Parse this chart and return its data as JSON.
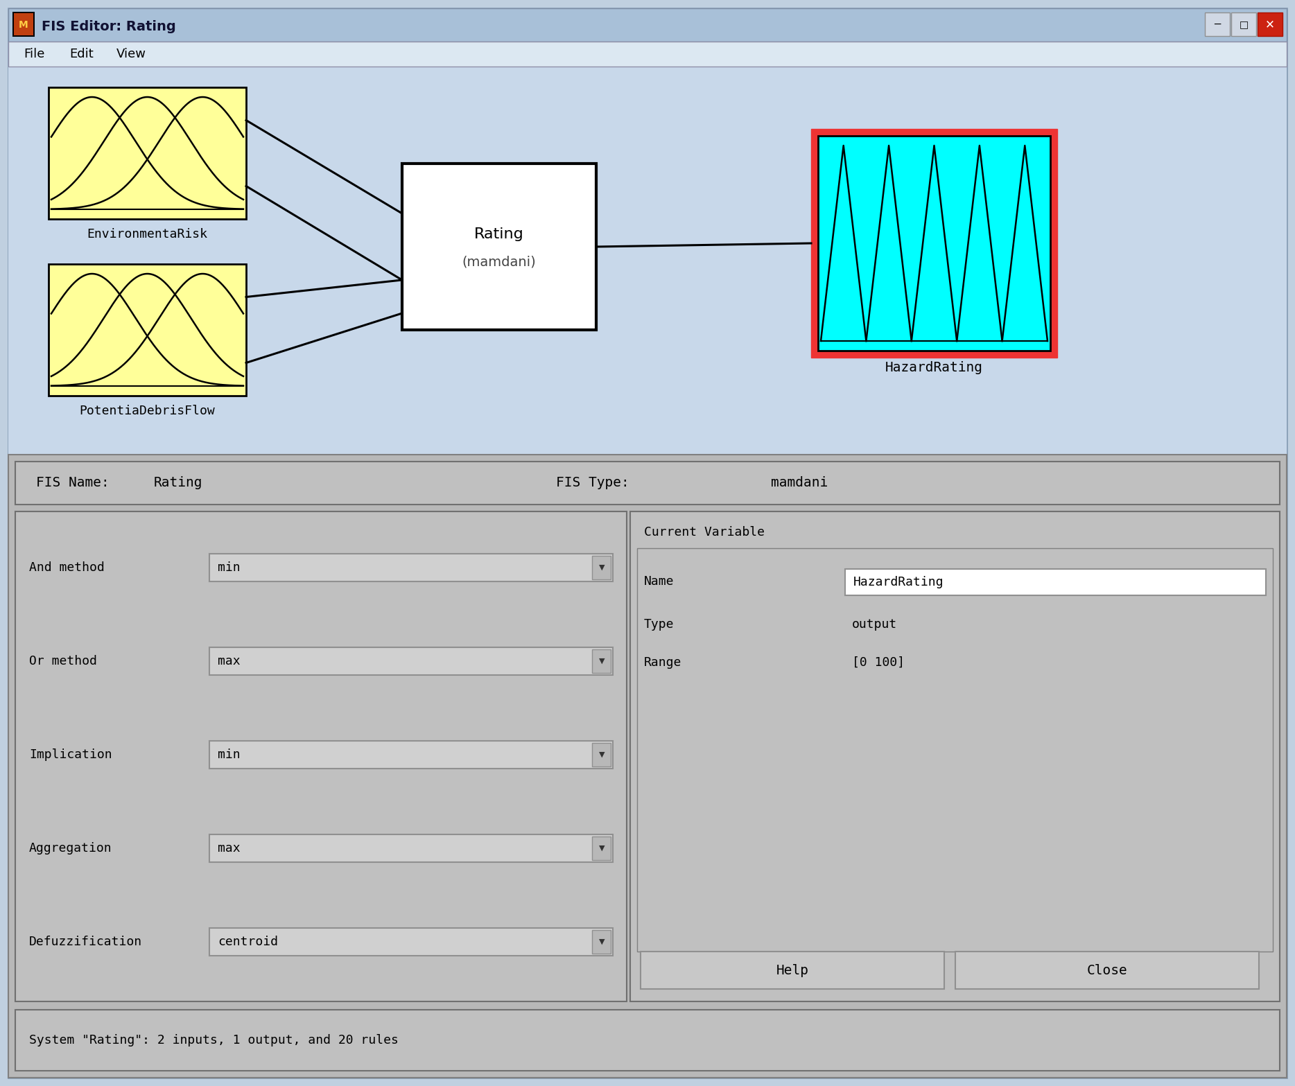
{
  "title": "FIS Editor: Rating",
  "menu_items": [
    "File",
    "Edit",
    "View"
  ],
  "window_bg": "#c0d0e0",
  "titlebar_text": "FIS Editor: Rating",
  "fis_name_label": "FIS Name:",
  "fis_name_value": "Rating",
  "fis_type_label": "FIS Type:",
  "fis_type_value": "mamdani",
  "center_box_line1": "Rating",
  "center_box_line2": "(mamdani)",
  "input1_label": "EnvironmentaRisk",
  "input2_label": "PotentiaDebrisFlow",
  "output_label": "HazardRating",
  "and_method": "min",
  "or_method": "max",
  "implication": "min",
  "aggregation": "max",
  "defuzzification": "centroid",
  "current_var_label": "Current Variable",
  "name_label": "Name",
  "name_value": "HazardRating",
  "type_label": "Type",
  "type_value": "output",
  "range_label": "Range",
  "range_value": "[0 100]",
  "status_text": "System \"Rating\": 2 inputs, 1 output, and 20 rules",
  "input_box_color": "#ffff99",
  "output_box_color": "#00ffff",
  "output_border_color": "#ee3333",
  "center_box_color": "#ffffff",
  "panel_bg": "#c0c0c0",
  "dropdown_bg": "#d0d0d0",
  "button_bg": "#c8c8c8",
  "name_field_bg": "#ffffff",
  "inner_panel_bg": "#b8b8b8"
}
